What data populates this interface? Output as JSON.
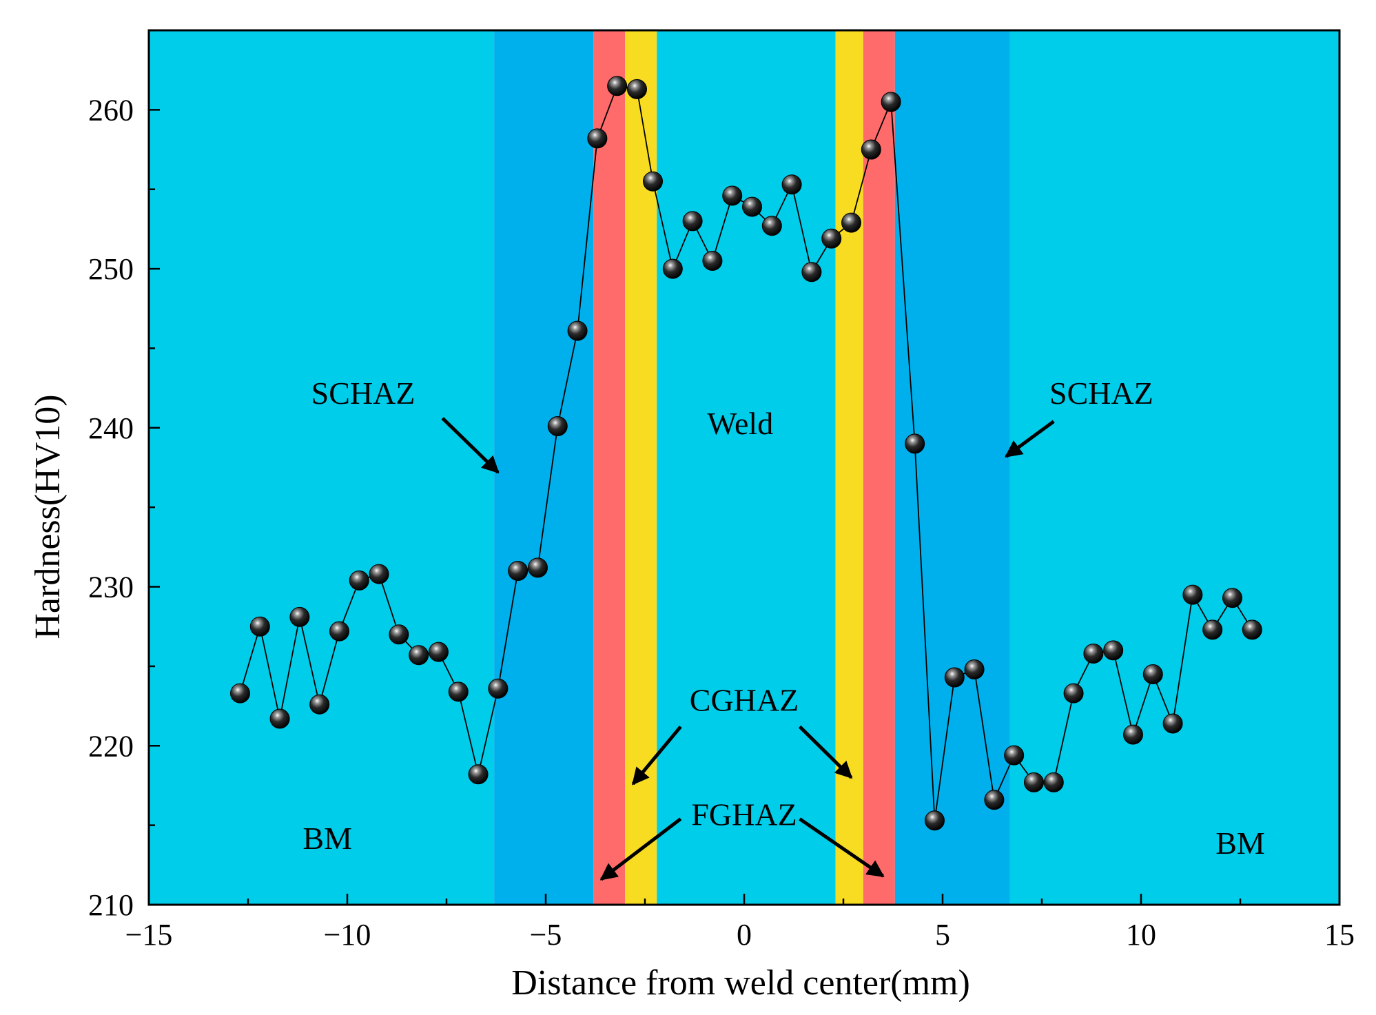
{
  "chart_data": {
    "type": "line",
    "xlabel": "Distance from weld center(mm)",
    "ylabel": "Hardness(HV10)",
    "xlim": [
      -15,
      15
    ],
    "ylim": [
      210,
      265
    ],
    "x_ticks": [
      -15,
      -10,
      -5,
      0,
      5,
      10,
      15
    ],
    "x_tick_labels": [
      "−15",
      "−10",
      "−5",
      "0",
      "5",
      "10",
      "15"
    ],
    "y_ticks": [
      210,
      220,
      230,
      240,
      250,
      260
    ],
    "y_tick_labels": [
      "210",
      "220",
      "230",
      "240",
      "250",
      "260"
    ],
    "series": [
      {
        "name": "Hardness",
        "x": [
          -12.7,
          -12.2,
          -11.7,
          -11.2,
          -10.7,
          -10.2,
          -9.7,
          -9.2,
          -8.7,
          -8.2,
          -7.7,
          -7.2,
          -6.7,
          -6.2,
          -5.7,
          -5.2,
          -4.7,
          -4.2,
          -3.7,
          -3.2,
          -2.7,
          -2.3,
          -1.8,
          -1.3,
          -0.8,
          -0.3,
          0.2,
          0.7,
          1.2,
          1.7,
          2.2,
          2.7,
          3.2,
          3.7,
          4.3,
          4.8,
          5.3,
          5.8,
          6.3,
          6.8,
          7.3,
          7.8,
          8.3,
          8.8,
          9.3,
          9.8,
          10.3,
          10.8,
          11.3,
          11.8,
          12.3,
          12.8
        ],
        "y": [
          223.3,
          227.5,
          221.7,
          228.1,
          222.6,
          227.2,
          230.4,
          230.8,
          227.0,
          225.7,
          225.9,
          223.4,
          218.2,
          223.6,
          231.0,
          231.2,
          240.1,
          246.1,
          258.2,
          261.5,
          261.3,
          255.5,
          250.0,
          253.0,
          250.5,
          254.6,
          253.9,
          252.7,
          255.3,
          249.8,
          251.9,
          252.9,
          257.5,
          260.5,
          239.0,
          215.3,
          224.3,
          224.8,
          216.6,
          219.4,
          217.7,
          217.7,
          223.3,
          225.8,
          226.0,
          220.7,
          224.5,
          221.4,
          229.5,
          227.3,
          229.3,
          227.3
        ]
      }
    ],
    "zones": [
      {
        "name": "BM",
        "from": -15,
        "to": -6.3,
        "color": "#00cdea"
      },
      {
        "name": "SCHAZ",
        "from": -6.3,
        "to": -3.8,
        "color": "#00b0ec"
      },
      {
        "name": "FGHAZ",
        "from": -3.8,
        "to": -3.0,
        "color": "#ff6b6b"
      },
      {
        "name": "CGHAZ",
        "from": -3.0,
        "to": -2.2,
        "color": "#f7dc22"
      },
      {
        "name": "Weld",
        "from": -2.2,
        "to": 2.3,
        "color": "#00cdea"
      },
      {
        "name": "CGHAZ",
        "from": 2.3,
        "to": 3.0,
        "color": "#f7dc22"
      },
      {
        "name": "FGHAZ",
        "from": 3.0,
        "to": 3.8,
        "color": "#ff6b6b"
      },
      {
        "name": "SCHAZ",
        "from": 3.8,
        "to": 6.7,
        "color": "#00b0ec"
      },
      {
        "name": "BM",
        "from": 6.7,
        "to": 15,
        "color": "#00cdea"
      }
    ],
    "annotations": [
      {
        "text": "SCHAZ",
        "x": -9.6,
        "y": 241.5,
        "arrow_from": [
          -7.6,
          240.6
        ],
        "arrow_to": [
          -6.2,
          237.2
        ]
      },
      {
        "text": "SCHAZ",
        "x": 9.0,
        "y": 241.5,
        "arrow_from": [
          7.8,
          240.4
        ],
        "arrow_to": [
          6.6,
          238.2
        ]
      },
      {
        "text": "Weld",
        "x": -0.1,
        "y": 239.6
      },
      {
        "text": "CGHAZ",
        "x": 0.0,
        "y": 222.2,
        "arrow_from": [
          -1.6,
          221.2
        ],
        "arrow_to": [
          -2.8,
          217.6
        ],
        "arrow2_from": [
          1.4,
          221.2
        ],
        "arrow2_to": [
          2.7,
          218.0
        ]
      },
      {
        "text": "FGHAZ",
        "x": 0.0,
        "y": 215.0,
        "arrow_from": [
          -1.6,
          215.4
        ],
        "arrow_to": [
          -3.6,
          211.6
        ],
        "arrow2_from": [
          1.4,
          215.4
        ],
        "arrow2_to": [
          3.5,
          211.8
        ]
      },
      {
        "text": "BM",
        "x": -10.5,
        "y": 213.5
      },
      {
        "text": "BM",
        "x": 12.5,
        "y": 213.2
      }
    ],
    "colors": {
      "line": "#000000",
      "marker": "#101010",
      "axis": "#000000"
    }
  }
}
